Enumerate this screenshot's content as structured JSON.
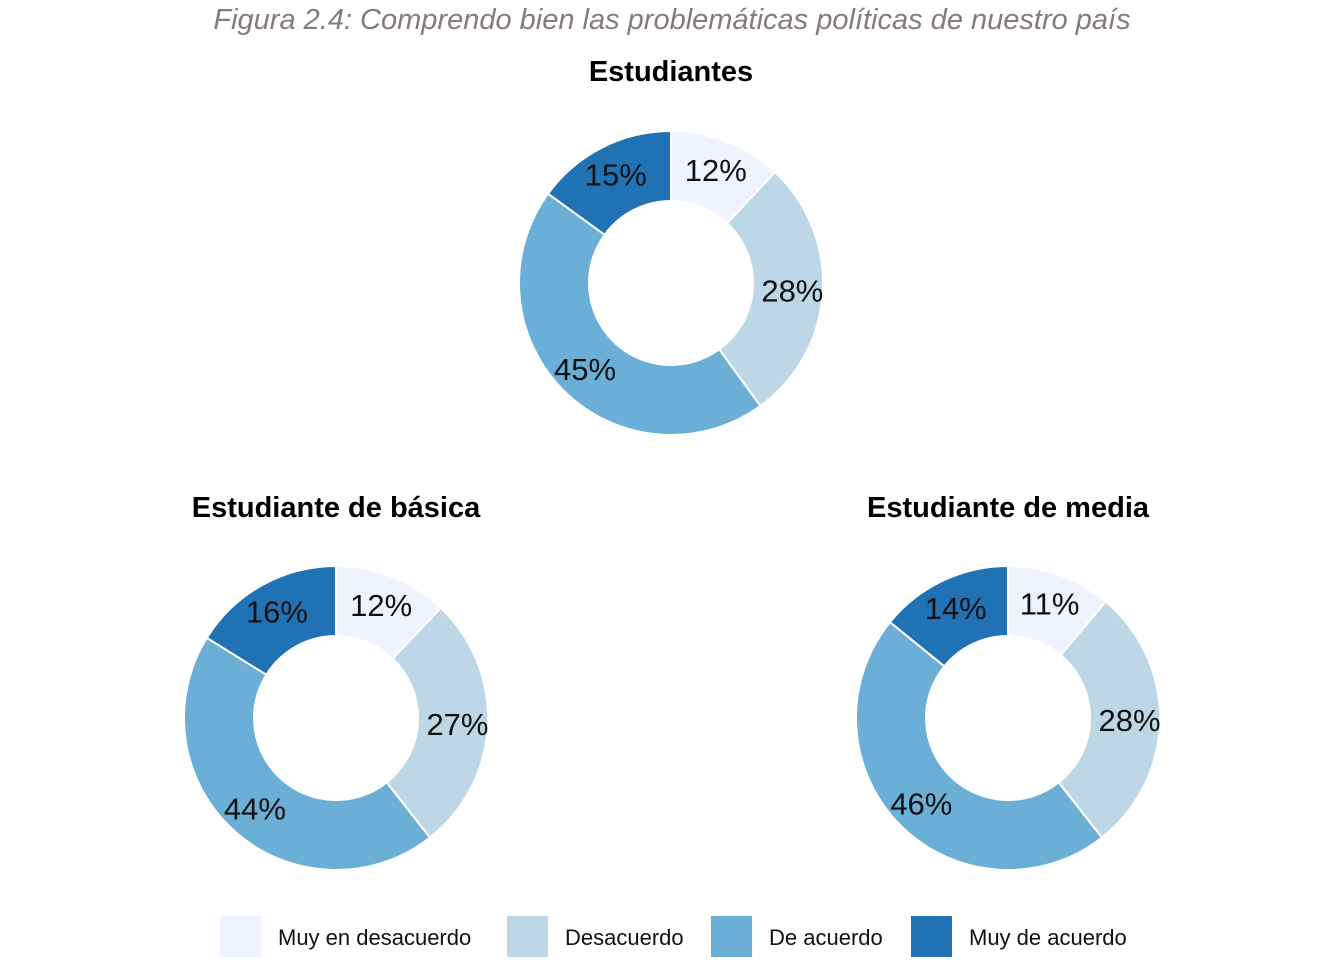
{
  "figure_title": "Figura 2.4: Comprendo bien las problemáticas políticas de nuestro país",
  "colors": {
    "Muy en desacuerdo": "#eff3ff",
    "Desacuerdo": "#bdd7e7",
    "De acuerdo": "#6baed6",
    "Muy de acuerdo": "#2171b5"
  },
  "legend": [
    "Muy en desacuerdo",
    "Desacuerdo",
    "De acuerdo",
    "Muy de acuerdo"
  ],
  "chart_data": [
    {
      "type": "pie",
      "title": "Estudiantes",
      "categories": [
        "Muy en desacuerdo",
        "Desacuerdo",
        "De acuerdo",
        "Muy de acuerdo"
      ],
      "values": [
        12,
        28,
        45,
        15
      ],
      "labels": [
        "12%",
        "28%",
        "45%",
        "15%"
      ]
    },
    {
      "type": "pie",
      "title": "Estudiante de básica",
      "categories": [
        "Muy en desacuerdo",
        "Desacuerdo",
        "De acuerdo",
        "Muy de acuerdo"
      ],
      "values": [
        12,
        27,
        44,
        16
      ],
      "labels": [
        "12%",
        "27%",
        "44%",
        "16%"
      ]
    },
    {
      "type": "pie",
      "title": "Estudiante de media",
      "categories": [
        "Muy en desacuerdo",
        "Desacuerdo",
        "De acuerdo",
        "Muy de acuerdo"
      ],
      "values": [
        11,
        28,
        46,
        14
      ],
      "labels": [
        "11%",
        "28%",
        "46%",
        "14%"
      ]
    }
  ]
}
